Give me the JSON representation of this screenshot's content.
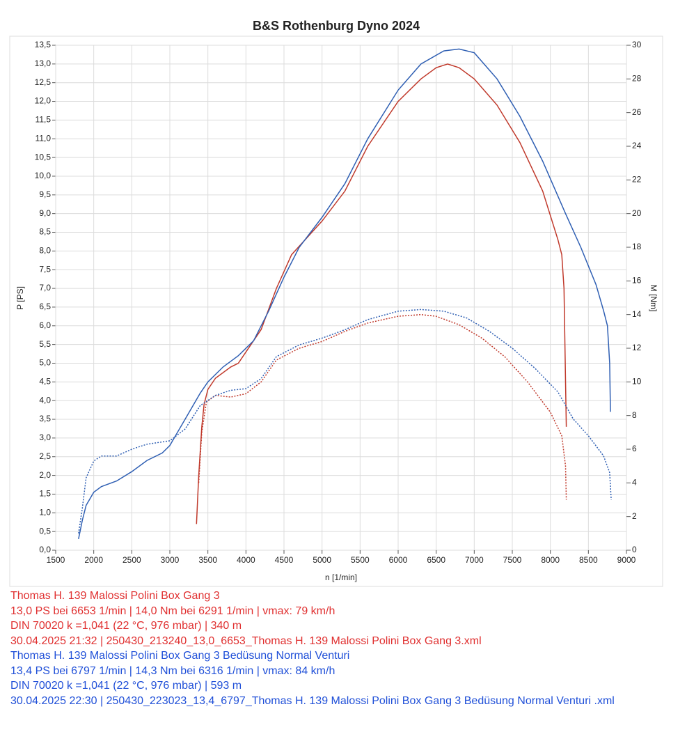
{
  "chart_data": {
    "type": "line",
    "title": "B&S Rothenburg Dyno 2024",
    "x_label": "n [1/min]",
    "y_label": "P [PS]",
    "y2_label": "M [Nm]",
    "grid": true,
    "xlim": [
      1500,
      9000
    ],
    "xticks": [
      1500,
      2000,
      2500,
      3000,
      3500,
      4000,
      4500,
      5000,
      5500,
      6000,
      6500,
      7000,
      7500,
      8000,
      8500,
      9000
    ],
    "ylim": [
      0,
      13.5
    ],
    "yticks": [
      {
        "value": 0,
        "label": "0,0"
      },
      {
        "value": 0.5,
        "label": "0,5"
      },
      {
        "value": 1,
        "label": "1,0"
      },
      {
        "value": 1.5,
        "label": "1,5"
      },
      {
        "value": 2,
        "label": "2,0"
      },
      {
        "value": 2.5,
        "label": "2,5"
      },
      {
        "value": 3,
        "label": "3,0"
      },
      {
        "value": 3.5,
        "label": "3,5"
      },
      {
        "value": 4,
        "label": "4,0"
      },
      {
        "value": 4.5,
        "label": "4,5"
      },
      {
        "value": 5,
        "label": "5,0"
      },
      {
        "value": 5.5,
        "label": "5,5"
      },
      {
        "value": 6,
        "label": "6,0"
      },
      {
        "value": 6.5,
        "label": "6,5"
      },
      {
        "value": 7,
        "label": "7,0"
      },
      {
        "value": 7.5,
        "label": "7,5"
      },
      {
        "value": 8,
        "label": "8,0"
      },
      {
        "value": 8.5,
        "label": "8,5"
      },
      {
        "value": 9,
        "label": "9,0"
      },
      {
        "value": 9.5,
        "label": "9,5"
      },
      {
        "value": 10,
        "label": "10,0"
      },
      {
        "value": 10.5,
        "label": "10,5"
      },
      {
        "value": 11,
        "label": "11,0"
      },
      {
        "value": 11.5,
        "label": "11,5"
      },
      {
        "value": 12,
        "label": "12,0"
      },
      {
        "value": 12.5,
        "label": "12,5"
      },
      {
        "value": 13,
        "label": "13,0"
      },
      {
        "value": 13.5,
        "label": "13,5"
      }
    ],
    "y2lim": [
      0,
      30
    ],
    "y2ticks": [
      0,
      2,
      4,
      6,
      8,
      10,
      12,
      14,
      16,
      18,
      20,
      22,
      24,
      26,
      28,
      30
    ],
    "series": [
      {
        "color": "#c0392b",
        "style": "solid",
        "x": [
          3350,
          3380,
          3420,
          3450,
          3500,
          3600,
          3800,
          3900,
          4000,
          4200,
          4400,
          4600,
          5000,
          5300,
          5600,
          6000,
          6300,
          6500,
          6650,
          6800,
          7000,
          7300,
          7600,
          7900,
          8100,
          8150,
          8180,
          8200,
          8210
        ],
        "values": [
          0.7,
          2.0,
          3.3,
          3.9,
          4.3,
          4.6,
          4.9,
          5.0,
          5.3,
          5.9,
          7.0,
          7.9,
          8.8,
          9.6,
          10.8,
          12.0,
          12.6,
          12.9,
          13.0,
          12.9,
          12.6,
          11.9,
          10.9,
          9.6,
          8.3,
          7.9,
          7.0,
          4.5,
          3.3
        ]
      },
      {
        "color": "#c0392b",
        "style": "dotted",
        "axis": "y2",
        "x": [
          3380,
          3420,
          3480,
          3600,
          3800,
          4000,
          4200,
          4400,
          4700,
          5000,
          5300,
          5600,
          6000,
          6300,
          6500,
          6800,
          7100,
          7400,
          7700,
          8000,
          8150,
          8200,
          8210
        ],
        "values": [
          4.0,
          7.0,
          8.8,
          9.2,
          9.1,
          9.3,
          10.0,
          11.3,
          12.0,
          12.4,
          13.0,
          13.5,
          13.9,
          14.0,
          13.9,
          13.4,
          12.6,
          11.5,
          10.0,
          8.2,
          6.8,
          5.0,
          3.0
        ]
      },
      {
        "color": "#2f5fb3",
        "style": "solid",
        "x": [
          1800,
          1850,
          1900,
          2000,
          2100,
          2300,
          2500,
          2700,
          2900,
          3000,
          3200,
          3400,
          3500,
          3700,
          3900,
          4100,
          4300,
          4500,
          4700,
          5000,
          5300,
          5600,
          6000,
          6300,
          6600,
          6800,
          7000,
          7300,
          7600,
          7900,
          8200,
          8400,
          8600,
          8700,
          8750,
          8780,
          8790
        ],
        "values": [
          0.3,
          0.8,
          1.2,
          1.55,
          1.7,
          1.85,
          2.1,
          2.4,
          2.6,
          2.8,
          3.5,
          4.2,
          4.5,
          4.9,
          5.2,
          5.6,
          6.4,
          7.3,
          8.1,
          8.9,
          9.8,
          11.0,
          12.3,
          13.0,
          13.35,
          13.4,
          13.3,
          12.6,
          11.6,
          10.4,
          9.0,
          8.1,
          7.1,
          6.4,
          6.0,
          5.0,
          3.7
        ]
      },
      {
        "color": "#2f5fb3",
        "style": "dotted",
        "axis": "y2",
        "x": [
          1800,
          1850,
          1900,
          2000,
          2100,
          2300,
          2500,
          2700,
          3000,
          3200,
          3400,
          3600,
          3800,
          4000,
          4200,
          4400,
          4700,
          5000,
          5300,
          5600,
          6000,
          6300,
          6600,
          6900,
          7200,
          7500,
          7800,
          8100,
          8300,
          8500,
          8600,
          8700,
          8780,
          8800
        ],
        "values": [
          1.0,
          2.5,
          4.3,
          5.3,
          5.6,
          5.6,
          6.0,
          6.3,
          6.5,
          7.2,
          8.6,
          9.2,
          9.5,
          9.6,
          10.2,
          11.5,
          12.2,
          12.6,
          13.1,
          13.7,
          14.2,
          14.3,
          14.2,
          13.8,
          13.0,
          12.0,
          10.8,
          9.4,
          7.8,
          6.8,
          6.2,
          5.6,
          4.6,
          3.0
        ]
      }
    ],
    "notes": [
      {
        "color": "#e03030",
        "lines": [
          "Thomas H. 139 Malossi Polini Box Gang 3",
          "13,0 PS bei 6653 1/min | 14,0 Nm bei 6291 1/min | vmax: 79 km/h",
          "DIN 70020 k =1,041 (22 °C, 976 mbar) | 340 m",
          "30.04.2025 21:32 | 250430_213240_13,0_6653_Thomas H. 139 Malossi Polini Box Gang 3.xml"
        ]
      },
      {
        "color": "#2050d8",
        "lines": [
          "Thomas H. 139 Malossi Polini Box Gang 3 Bedüsung Normal Venturi",
          "13,4 PS bei 6797 1/min | 14,3 Nm bei 6316 1/min | vmax: 84 km/h",
          "DIN 70020 k =1,041 (22 °C, 976 mbar) | 593 m",
          "30.04.2025 22:30 | 250430_223023_13,4_6797_Thomas H. 139 Malossi Polini Box Gang 3 Bedüsung Normal Venturi .xml"
        ]
      }
    ]
  }
}
